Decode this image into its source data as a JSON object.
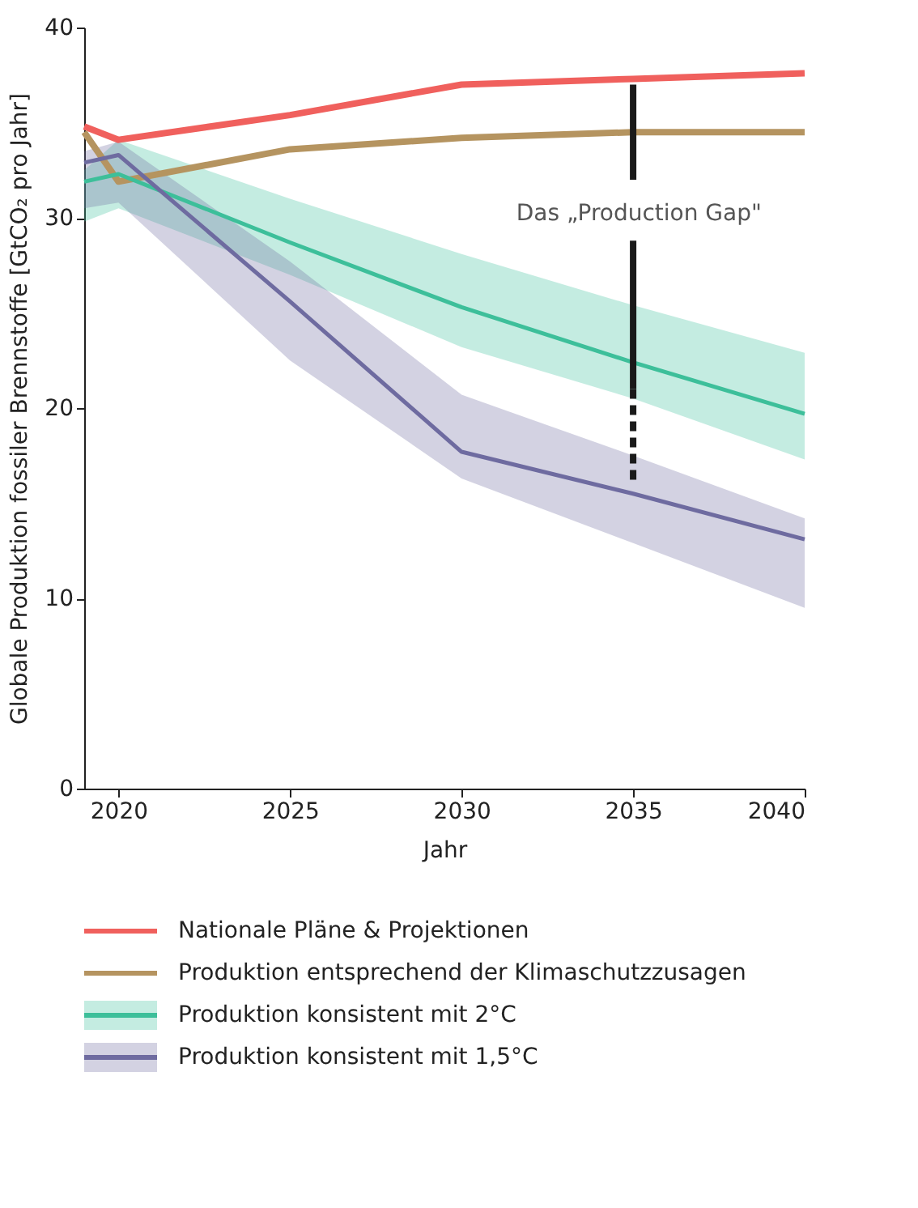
{
  "chart_data": {
    "type": "line",
    "xlabel": "Jahr",
    "ylabel": "Globale Produktion fossiler Brennstoffe [GtCO₂ pro Jahr]",
    "xlim": [
      2019,
      2040
    ],
    "xticks": [
      2020,
      2025,
      2030,
      2035,
      2040
    ],
    "ylim": [
      0,
      40
    ],
    "yticks": [
      0,
      10,
      20,
      30,
      40
    ],
    "grid": false,
    "legend": "bottom",
    "marker": "none",
    "series": [
      {
        "name": "Nationale Pläne & Projektionen",
        "color": "#f0605d",
        "x": [
          2019,
          2020,
          2025,
          2030,
          2035,
          2040
        ],
        "values": [
          34.8,
          34.1,
          35.4,
          37.0,
          37.3,
          37.6
        ]
      },
      {
        "name": "Produktion entsprechend der Klimaschutzzusagen",
        "color": "#b59460",
        "x": [
          2019,
          2020,
          2025,
          2030,
          2035,
          2040
        ],
        "values": [
          34.5,
          31.9,
          33.6,
          34.2,
          34.5,
          34.5
        ]
      },
      {
        "name": "Produktion konsistent mit 2°C",
        "color": "#3dbf9a",
        "x": [
          2019,
          2020,
          2025,
          2030,
          2035,
          2040
        ],
        "values": [
          31.9,
          32.3,
          28.7,
          25.3,
          22.4,
          19.7
        ],
        "lower": [
          29.8,
          30.5,
          27.0,
          23.2,
          20.5,
          17.3
        ],
        "upper": [
          32.5,
          34.1,
          31.0,
          28.1,
          25.4,
          22.9
        ]
      },
      {
        "name": "Produktion konsistent mit 1,5°C",
        "color": "#6e6ba0",
        "x": [
          2019,
          2020,
          2025,
          2030,
          2035,
          2040
        ],
        "values": [
          32.9,
          33.3,
          25.6,
          17.7,
          15.5,
          13.1
        ],
        "lower": [
          30.5,
          30.8,
          22.5,
          16.3,
          12.9,
          9.5
        ],
        "upper": [
          33.5,
          34.0,
          27.7,
          20.7,
          17.5,
          14.2
        ]
      },
      {
        "color": "#1a1a1a",
        "line_style": "solid",
        "x": [
          2035,
          2035
        ],
        "values": [
          37.0,
          32.0
        ]
      },
      {
        "color": "#1a1a1a",
        "line_style": "solid",
        "x": [
          2035,
          2035
        ],
        "values": [
          28.8,
          21.0
        ]
      },
      {
        "color": "#1a1a1a",
        "line_style": "dashed",
        "x": [
          2035,
          2035
        ],
        "values": [
          21.0,
          16.0
        ]
      }
    ],
    "annotations": [
      "Das „Production Gap\""
    ]
  }
}
